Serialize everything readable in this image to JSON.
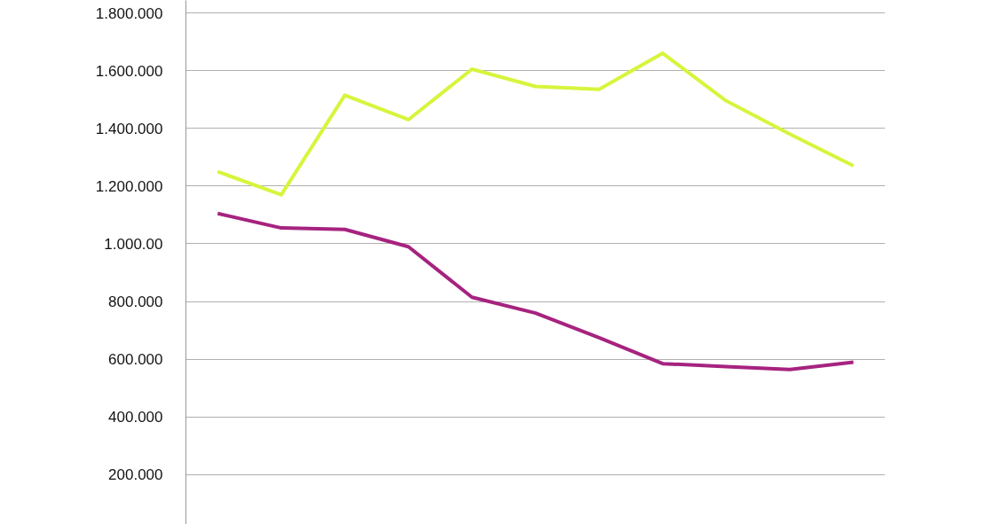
{
  "chart_data": {
    "type": "line",
    "categories": [
      null,
      null,
      null,
      null,
      null,
      null,
      null,
      null,
      null,
      null,
      null
    ],
    "series": [
      {
        "color": "#d6f53c",
        "values": [
          1250000,
          1170000,
          1515000,
          1430000,
          1605000,
          1545000,
          1535000,
          1660000,
          1495000,
          1380000,
          1270000
        ]
      },
      {
        "color": "#a6237f",
        "values": [
          1105000,
          1055000,
          1050000,
          990000,
          815000,
          760000,
          675000,
          585000,
          575000,
          565000,
          590000
        ]
      }
    ],
    "ylim": [
      28000,
      1843000
    ],
    "yticks": [
      {
        "value": 200000,
        "label": "200.000"
      },
      {
        "value": 400000,
        "label": "400.000"
      },
      {
        "value": 600000,
        "label": "600.000"
      },
      {
        "value": 800000,
        "label": "800.000"
      },
      {
        "value": 1000000,
        "label": "1.000.00"
      },
      {
        "value": 1200000,
        "label": "1.200.000"
      },
      {
        "value": 1400000,
        "label": "1.400.000"
      },
      {
        "value": 1600000,
        "label": "1.600.000"
      },
      {
        "value": 1800000,
        "label": "1.800.000"
      }
    ],
    "grid": "y",
    "tick_labels": "y",
    "line_style": "solid",
    "marker": "none"
  }
}
